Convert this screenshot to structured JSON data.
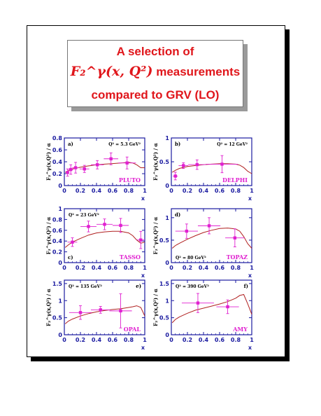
{
  "title": {
    "line1": "A selection of",
    "line2_math": "F₂^γ(x, Q²)",
    "line2_text": "measurements",
    "line3": "compared to GRV (LO)"
  },
  "colors": {
    "data": "#e020d0",
    "curve": "#b02020",
    "axis": "#1a1aa0",
    "title": "#e0161b"
  },
  "chart_data": [
    {
      "type": "scatter",
      "panel": "a)",
      "experiment": "PLUTO",
      "q2_label": "Q² = 5.3 GeV²",
      "ylabel": "F₂^γ(x,Q²) / α",
      "xlabel": "x",
      "xlim": [
        0,
        1
      ],
      "ylim": [
        0,
        0.8
      ],
      "yticks": [
        0,
        0.2,
        0.4,
        0.6,
        0.8
      ],
      "xticks": [
        0,
        0.2,
        0.4,
        0.6,
        0.8,
        1
      ],
      "points": [
        {
          "x": 0.04,
          "y": 0.22,
          "xerr": 0.02,
          "yerr": 0.06
        },
        {
          "x": 0.08,
          "y": 0.27,
          "xerr": 0.03,
          "yerr": 0.08
        },
        {
          "x": 0.14,
          "y": 0.3,
          "xerr": 0.04,
          "yerr": 0.09
        },
        {
          "x": 0.25,
          "y": 0.28,
          "xerr": 0.06,
          "yerr": 0.06
        },
        {
          "x": 0.41,
          "y": 0.35,
          "xerr": 0.08,
          "yerr": 0.07
        },
        {
          "x": 0.58,
          "y": 0.45,
          "xerr": 0.09,
          "yerr": 0.1
        },
        {
          "x": 0.78,
          "y": 0.38,
          "xerr": 0.11,
          "yerr": 0.1
        }
      ],
      "curve_x": [
        0.01,
        0.05,
        0.1,
        0.2,
        0.3,
        0.4,
        0.5,
        0.6,
        0.7,
        0.8,
        0.85,
        0.9,
        0.95,
        1.0
      ],
      "curve_y": [
        0.22,
        0.25,
        0.28,
        0.31,
        0.33,
        0.35,
        0.36,
        0.37,
        0.38,
        0.39,
        0.38,
        0.35,
        0.3,
        0.3
      ]
    },
    {
      "type": "scatter",
      "panel": "b)",
      "experiment": "DELPHI",
      "q2_label": "Q² = 12 GeV²",
      "ylabel": "F₂^γ(x,Q²) / α",
      "xlabel": "x",
      "xlim": [
        0,
        1
      ],
      "ylim": [
        0,
        1
      ],
      "yticks": [
        0,
        0.5,
        1
      ],
      "xticks": [
        0,
        0.2,
        0.4,
        0.6,
        0.8,
        1
      ],
      "points": [
        {
          "x": 0.05,
          "y": 0.2,
          "xerr": 0.03,
          "yerr": 0.08
        },
        {
          "x": 0.15,
          "y": 0.42,
          "xerr": 0.06,
          "yerr": 0.06
        },
        {
          "x": 0.32,
          "y": 0.44,
          "xerr": 0.11,
          "yerr": 0.1
        },
        {
          "x": 0.63,
          "y": 0.45,
          "xerr": 0.2,
          "yerr": 0.18
        }
      ],
      "curve_x": [
        0.01,
        0.05,
        0.1,
        0.2,
        0.3,
        0.4,
        0.5,
        0.6,
        0.7,
        0.8,
        0.85,
        0.9,
        0.95,
        1.0
      ],
      "curve_y": [
        0.28,
        0.32,
        0.36,
        0.4,
        0.42,
        0.44,
        0.45,
        0.46,
        0.46,
        0.45,
        0.43,
        0.38,
        0.3,
        0.25
      ]
    },
    {
      "type": "scatter",
      "panel": "c)",
      "experiment": "TASSO",
      "q2_label": "Q² = 23 GeV²",
      "ylabel": "F₂^γ(x,Q²) / α",
      "xlabel": "x",
      "xlim": [
        0,
        1
      ],
      "ylim": [
        0,
        1
      ],
      "yticks": [
        0,
        0.2,
        0.4,
        0.6,
        0.8,
        1
      ],
      "xticks": [
        0,
        0.2,
        0.4,
        0.6,
        0.8,
        1
      ],
      "points": [
        {
          "x": 0.1,
          "y": 0.38,
          "xerr": 0.06,
          "yerr": 0.08
        },
        {
          "x": 0.3,
          "y": 0.67,
          "xerr": 0.1,
          "yerr": 0.1
        },
        {
          "x": 0.5,
          "y": 0.71,
          "xerr": 0.1,
          "yerr": 0.1
        },
        {
          "x": 0.7,
          "y": 0.69,
          "xerr": 0.1,
          "yerr": 0.13
        },
        {
          "x": 0.95,
          "y": 0.42,
          "xerr": 0.05,
          "yerr": 0.16
        }
      ],
      "curve_x": [
        0.01,
        0.05,
        0.1,
        0.2,
        0.3,
        0.4,
        0.5,
        0.6,
        0.7,
        0.8,
        0.85,
        0.9,
        0.95,
        1.0
      ],
      "curve_y": [
        0.28,
        0.33,
        0.38,
        0.45,
        0.51,
        0.55,
        0.57,
        0.58,
        0.58,
        0.55,
        0.5,
        0.42,
        0.36,
        0.38
      ]
    },
    {
      "type": "scatter",
      "panel": "d)",
      "experiment": "TOPAZ",
      "q2_label": "Q² = 80 GeV²",
      "ylabel": "F₂^γ(x,Q²) / α",
      "xlabel": "x",
      "xlim": [
        0,
        1
      ],
      "ylim": [
        0,
        1.2
      ],
      "yticks": [
        0,
        0.5,
        1
      ],
      "xticks": [
        0,
        0.2,
        0.4,
        0.6,
        0.8,
        1
      ],
      "points": [
        {
          "x": 0.19,
          "y": 0.7,
          "xerr": 0.14,
          "yerr": 0.16
        },
        {
          "x": 0.47,
          "y": 0.82,
          "xerr": 0.14,
          "yerr": 0.18
        },
        {
          "x": 0.79,
          "y": 0.55,
          "xerr": 0.12,
          "yerr": 0.2
        }
      ],
      "curve_x": [
        0.01,
        0.05,
        0.1,
        0.2,
        0.3,
        0.4,
        0.5,
        0.6,
        0.7,
        0.8,
        0.85,
        0.9,
        0.95,
        1.0
      ],
      "curve_y": [
        0.32,
        0.38,
        0.43,
        0.52,
        0.6,
        0.67,
        0.72,
        0.76,
        0.77,
        0.75,
        0.7,
        0.58,
        0.42,
        0.32
      ]
    },
    {
      "type": "scatter",
      "panel": "e)",
      "experiment": "OPAL",
      "q2_label": "Q² = 135 GeV²",
      "ylabel": "F₂^γ(x,Q²) / α",
      "xlabel": "x",
      "xlim": [
        0,
        1
      ],
      "ylim": [
        0,
        1.6
      ],
      "yticks": [
        0,
        0.5,
        1,
        1.5
      ],
      "xticks": [
        0,
        0.2,
        0.4,
        0.6,
        0.8,
        1
      ],
      "points": [
        {
          "x": 0.2,
          "y": 0.65,
          "xerr": 0.14,
          "yerr": 0.2
        },
        {
          "x": 0.45,
          "y": 0.73,
          "xerr": 0.12,
          "yerr": 0.1
        },
        {
          "x": 0.7,
          "y": 0.7,
          "xerr": 0.14,
          "yerr": 0.5
        }
      ],
      "curve_x": [
        0.01,
        0.05,
        0.1,
        0.2,
        0.3,
        0.4,
        0.5,
        0.6,
        0.7,
        0.8,
        0.85,
        0.9,
        0.95,
        1.0
      ],
      "curve_y": [
        0.32,
        0.4,
        0.46,
        0.55,
        0.62,
        0.67,
        0.71,
        0.74,
        0.76,
        0.8,
        0.82,
        0.85,
        0.8,
        0.55
      ]
    },
    {
      "type": "scatter",
      "panel": "f)",
      "experiment": "AMY",
      "q2_label": "Q² = 390 GeV²",
      "ylabel": "F₂^γ(x,Q²) / α",
      "xlabel": "x",
      "xlim": [
        0,
        1
      ],
      "ylim": [
        0,
        1.6
      ],
      "yticks": [
        0,
        0.5,
        1,
        1.5
      ],
      "xticks": [
        0,
        0.2,
        0.4,
        0.6,
        0.8,
        1
      ],
      "points": [
        {
          "x": 0.33,
          "y": 0.93,
          "xerr": 0.2,
          "yerr": 0.28
        },
        {
          "x": 0.7,
          "y": 0.82,
          "xerr": 0.14,
          "yerr": 0.2
        }
      ],
      "curve_x": [
        0.01,
        0.05,
        0.1,
        0.2,
        0.3,
        0.4,
        0.5,
        0.6,
        0.7,
        0.8,
        0.85,
        0.9,
        0.95,
        1.0
      ],
      "curve_y": [
        0.35,
        0.45,
        0.52,
        0.63,
        0.72,
        0.78,
        0.84,
        0.9,
        0.97,
        1.07,
        1.15,
        1.18,
        0.9,
        0.6
      ]
    }
  ]
}
